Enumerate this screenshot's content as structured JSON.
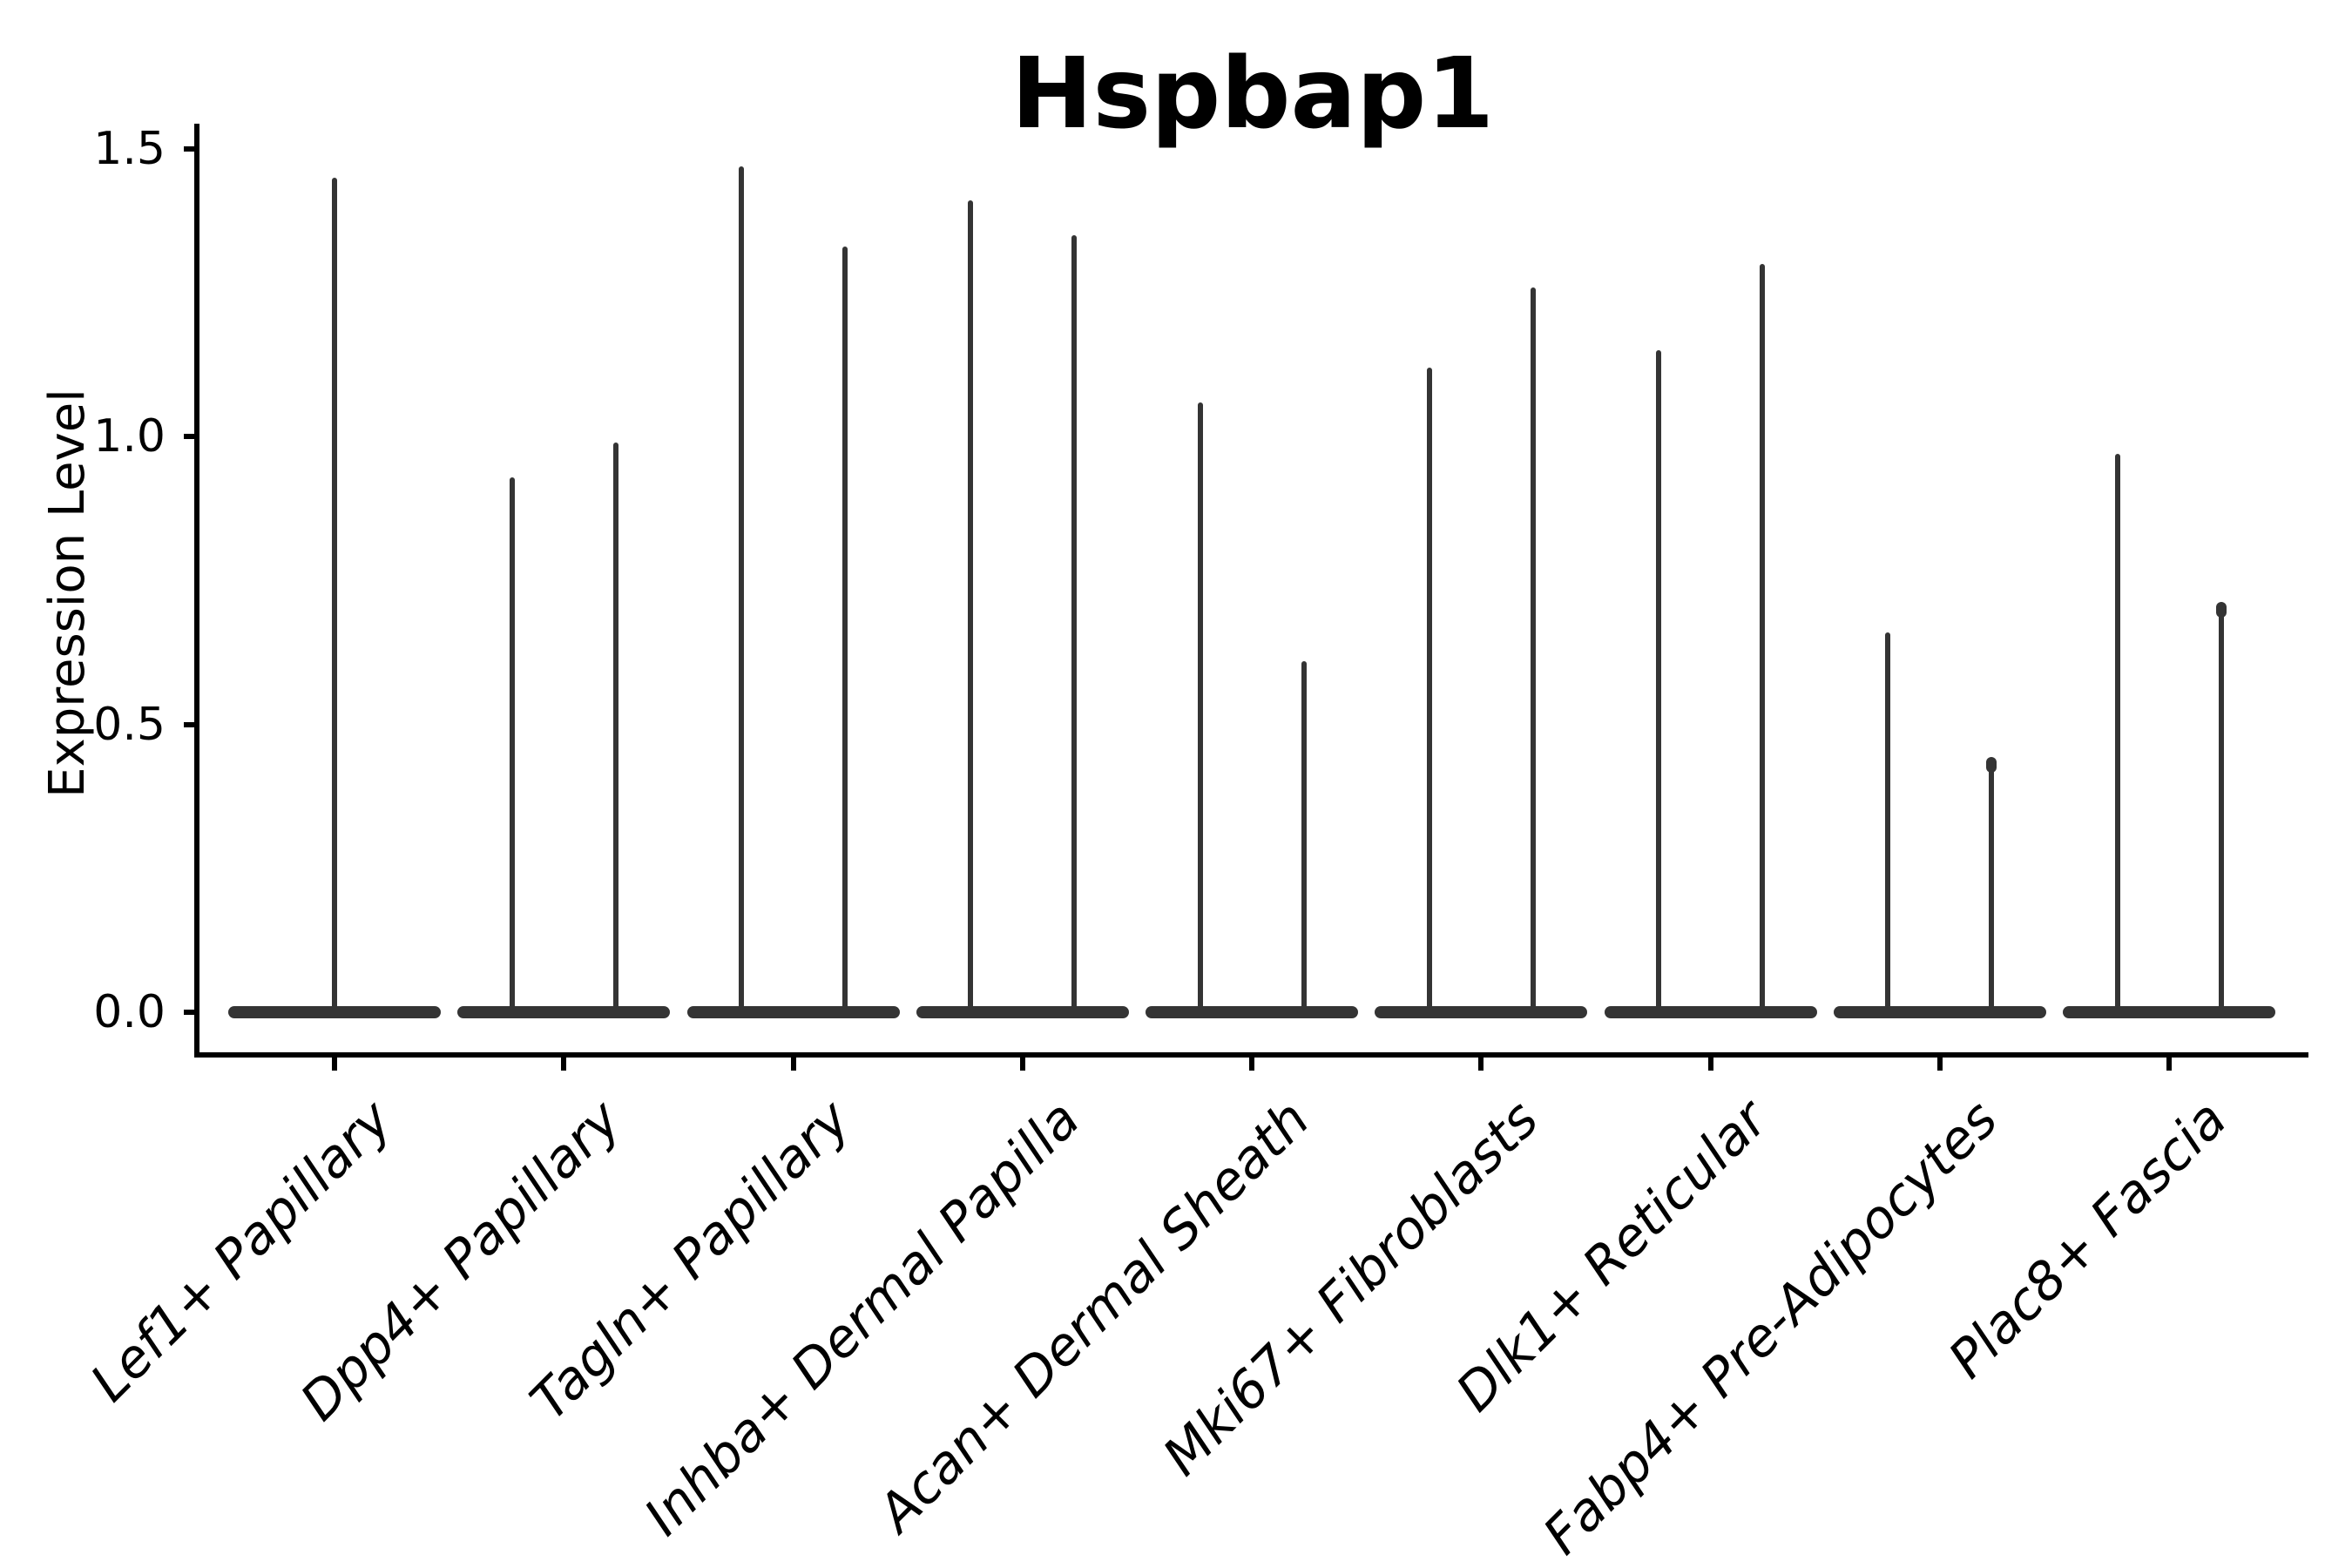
{
  "chart_data": {
    "type": "violin",
    "title": "Hspbap1",
    "ylabel": "Expression Level",
    "xlabel": "",
    "ylim": [
      0,
      1.5
    ],
    "yticks": [
      0.0,
      0.5,
      1.0,
      1.5
    ],
    "ytick_labels": [
      "0.0",
      "0.5",
      "1.0",
      "1.5"
    ],
    "categories": [
      "Lef1+ Papillary",
      "Dpp4+ Papillary",
      "Tagln+ Papillary",
      "Inhba+ Dermal Papilla",
      "Acan+ Dermal Sheath",
      "Mki67+ Fibroblasts",
      "Dlk1+ Reticular",
      "Fabp4+ Pre-Adipocytes",
      "Plac8+ Fascia"
    ],
    "series": [
      {
        "category": "Lef1+ Papillary",
        "spikes": [
          {
            "value": 1.45
          }
        ]
      },
      {
        "category": "Dpp4+ Papillary",
        "spikes": [
          {
            "value": 0.93
          },
          {
            "value": 0.99
          }
        ]
      },
      {
        "category": "Tagln+ Papillary",
        "spikes": [
          {
            "value": 1.47
          },
          {
            "value": 1.33
          }
        ]
      },
      {
        "category": "Inhba+ Dermal Papilla",
        "spikes": [
          {
            "value": 1.41
          },
          {
            "value": 1.35
          }
        ]
      },
      {
        "category": "Acan+ Dermal Sheath",
        "spikes": [
          {
            "value": 1.06
          },
          {
            "value": 0.61
          }
        ]
      },
      {
        "category": "Mki67+ Fibroblasts",
        "spikes": [
          {
            "value": 1.12
          },
          {
            "value": 1.26
          }
        ]
      },
      {
        "category": "Dlk1+ Reticular",
        "spikes": [
          {
            "value": 1.15
          },
          {
            "value": 1.3
          }
        ]
      },
      {
        "category": "Fabp4+ Pre-Adipocytes",
        "spikes": [
          {
            "value": 0.66
          },
          {
            "value": 0.44,
            "knob": true
          }
        ]
      },
      {
        "category": "Plac8+ Fascia",
        "spikes": [
          {
            "value": 0.97
          },
          {
            "value": 0.71,
            "knob": true
          }
        ]
      }
    ],
    "style": {
      "violin_color": "#343434",
      "axis_color": "#000000",
      "background": "#ffffff"
    },
    "legend": "none",
    "grid": false,
    "notes": "Needle-thin violins: mass of zeros forms a flat base at y=0 with a thin spike up to the max expression. First category has one full-width centered violin; all other categories have two half-width violins."
  }
}
